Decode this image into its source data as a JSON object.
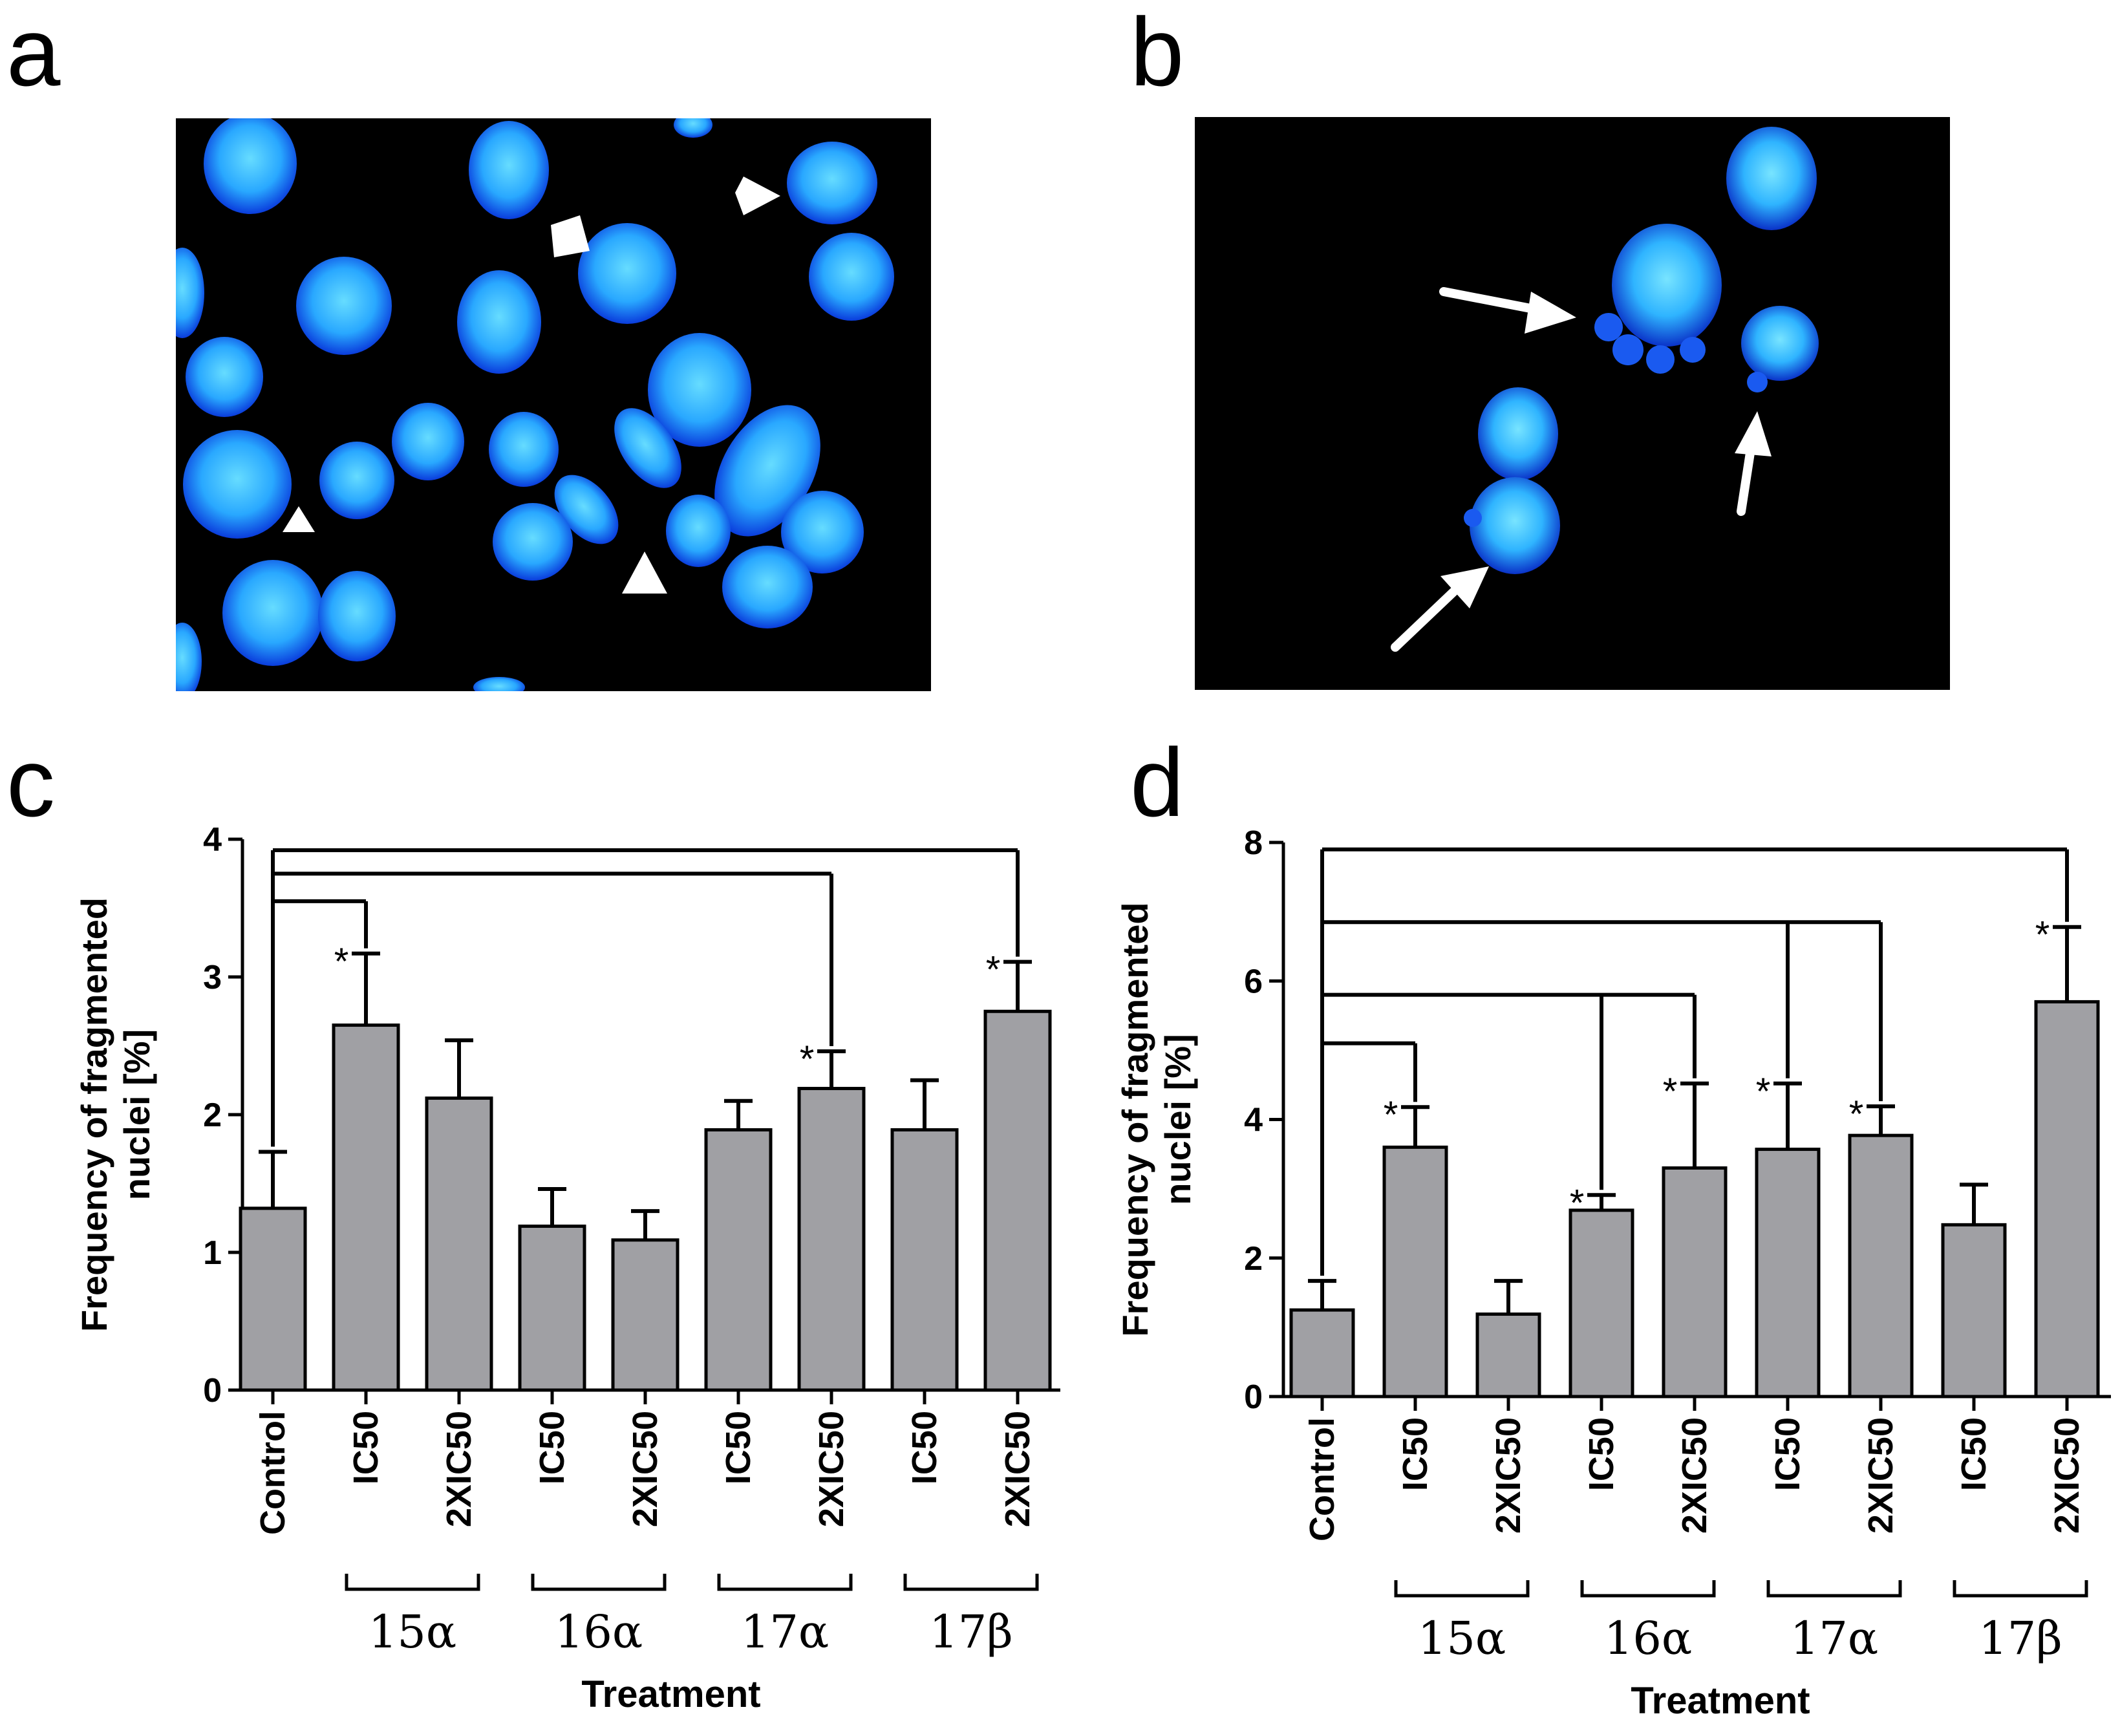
{
  "panels": {
    "a": "a",
    "b": "b",
    "c": "c",
    "d": "d"
  },
  "colors": {
    "bar_fill": "#a0a0a4",
    "nucleus_core": "#5ad2ff",
    "nucleus_edge": "#0a3cdc",
    "micrograph_bg": "#000000"
  },
  "chart_data": [
    {
      "panel": "c",
      "type": "bar",
      "ylabel": "Frequency of fragmented\nnuclei [%]",
      "xlabel": "Treatment",
      "ylim": [
        0,
        4
      ],
      "yticks": [
        "0",
        "1",
        "2",
        "3",
        "4"
      ],
      "categories": [
        "Control",
        "IC50",
        "2XIC50",
        "IC50",
        "2XIC50",
        "IC50",
        "2XIC50",
        "IC50",
        "2XIC50"
      ],
      "values": [
        1.32,
        2.65,
        2.12,
        1.19,
        1.09,
        1.89,
        2.19,
        1.89,
        2.75
      ],
      "errors": [
        0.41,
        0.52,
        0.42,
        0.27,
        0.21,
        0.21,
        0.27,
        0.36,
        0.36
      ],
      "groups": [
        {
          "label": "15α",
          "from": 1,
          "to": 2
        },
        {
          "label": "16α",
          "from": 3,
          "to": 4
        },
        {
          "label": "17α",
          "from": 5,
          "to": 6
        },
        {
          "label": "17β",
          "from": 7,
          "to": 8
        }
      ],
      "comparisons": [
        {
          "level": 3.55,
          "targets": [
            1
          ],
          "mark": "*"
        },
        {
          "level": 3.75,
          "targets": [
            6
          ],
          "mark": "*"
        },
        {
          "level": 3.92,
          "targets": [
            8
          ],
          "mark": "*"
        }
      ]
    },
    {
      "panel": "d",
      "type": "bar",
      "ylabel": "Frequency of fragmented\nnuclei [%]",
      "xlabel": "Treatment",
      "ylim": [
        0,
        8
      ],
      "yticks": [
        "0",
        "2",
        "4",
        "6",
        "8"
      ],
      "categories": [
        "Control",
        "IC50",
        "2XIC50",
        "IC50",
        "2XIC50",
        "IC50",
        "2XIC50",
        "IC50",
        "2XIC50"
      ],
      "values": [
        1.25,
        3.6,
        1.19,
        2.69,
        3.3,
        3.57,
        3.77,
        2.48,
        5.7
      ],
      "errors": [
        0.42,
        0.58,
        0.48,
        0.22,
        1.22,
        0.95,
        0.42,
        0.58,
        1.08
      ],
      "groups": [
        {
          "label": "15α",
          "from": 1,
          "to": 2
        },
        {
          "label": "16α",
          "from": 3,
          "to": 4
        },
        {
          "label": "17α",
          "from": 5,
          "to": 6
        },
        {
          "label": "17β",
          "from": 7,
          "to": 8
        }
      ],
      "comparisons": [
        {
          "level": 5.1,
          "targets": [
            1
          ],
          "mark": "*"
        },
        {
          "level": 5.8,
          "targets": [
            3,
            4
          ],
          "mark": "*"
        },
        {
          "level": 6.85,
          "targets": [
            5,
            6
          ],
          "mark": "*"
        },
        {
          "level": 7.9,
          "targets": [
            8
          ],
          "mark": "*"
        }
      ]
    }
  ]
}
